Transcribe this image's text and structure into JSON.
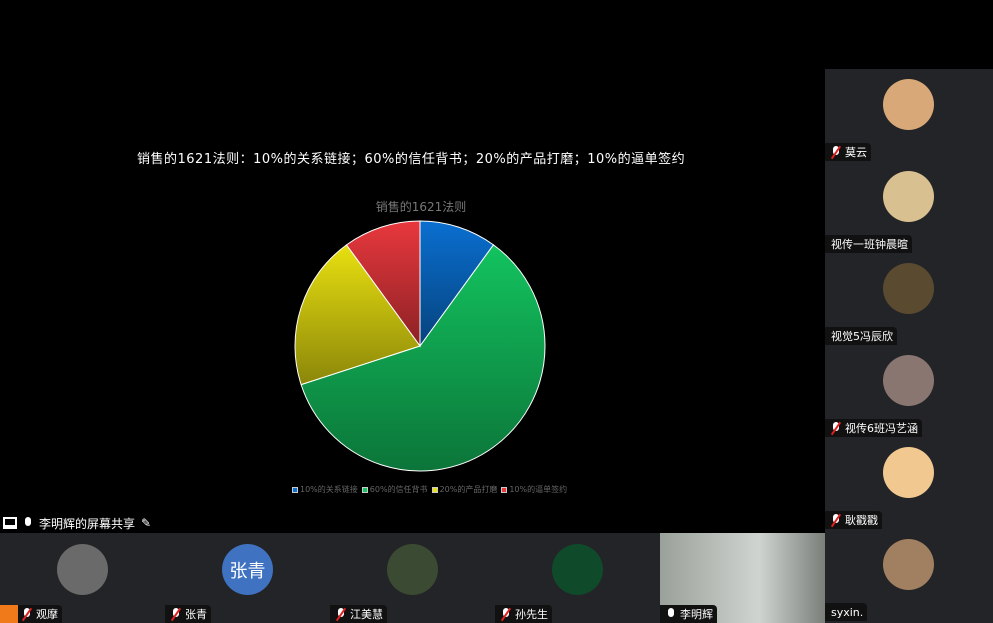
{
  "slide": {
    "title": "销售的1621法则：10%的关系链接；60%的信任背书；20%的产品打磨；10%的逼单签约"
  },
  "chart_data": {
    "type": "pie",
    "title": "销售的1621法则",
    "categories": [
      "10%的关系链接",
      "60%的信任背书",
      "20%的产品打磨",
      "10%的逼单签约"
    ],
    "values": [
      10,
      60,
      20,
      10
    ],
    "colors": [
      "#0a6fd0",
      "#13c35f",
      "#e8e010",
      "#e8383d"
    ],
    "legend": "bottom"
  },
  "share_bar": {
    "label": "李明辉的屏幕共享"
  },
  "bottom": [
    {
      "name": "观摩",
      "muted": true,
      "avatar_color": "#6a6a6a"
    },
    {
      "name": "张青",
      "muted": true,
      "avatar_text": "张青",
      "avatar_color": "#3f72c0"
    },
    {
      "name": "江美慧",
      "muted": true,
      "avatar_color": "#3b4a33"
    },
    {
      "name": "孙先生",
      "muted": true,
      "avatar_color": "#0f4a2a"
    },
    {
      "name": "李明辉",
      "muted": false,
      "avatar_color": "#8a8f8a"
    }
  ],
  "side": [
    {
      "name": "莫云",
      "muted": true,
      "avatar_color": "#d8a878"
    },
    {
      "name": "视传一班钟晨暄",
      "muted": false,
      "avatar_color": "#d9c090"
    },
    {
      "name": "视觉5冯辰欣",
      "muted": false,
      "avatar_color": "#5a4a30"
    },
    {
      "name": "视传6班冯艺涵",
      "muted": true,
      "avatar_color": "#8a7670"
    },
    {
      "name": "耿戳戳",
      "muted": true,
      "avatar_color": "#f0c890"
    },
    {
      "name": "syxin.",
      "muted": false,
      "avatar_color": "#a08060"
    }
  ]
}
